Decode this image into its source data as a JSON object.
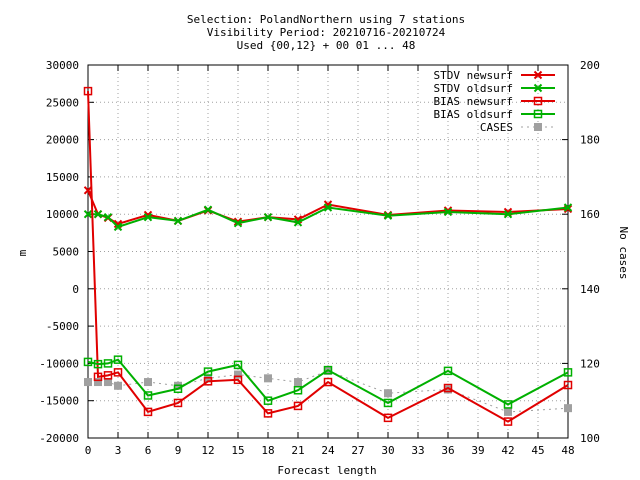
{
  "chart_data": {
    "type": "line",
    "title_lines": [
      "Selection: PolandNorthern using     7 stations",
      "Visibility   Period: 20210716-20210724",
      "Used {00,12} + 00 01 ... 48"
    ],
    "xlabel": "Forecast length",
    "ylabel": "m",
    "y2label": "No cases",
    "xlim": [
      0,
      48
    ],
    "ylim": [
      -20000,
      30000
    ],
    "y2lim": [
      100,
      200
    ],
    "xticks": [
      0,
      3,
      6,
      9,
      12,
      15,
      18,
      21,
      24,
      27,
      30,
      33,
      36,
      39,
      42,
      45,
      48
    ],
    "yticks": [
      -20000,
      -15000,
      -10000,
      -5000,
      0,
      5000,
      10000,
      15000,
      20000,
      25000,
      30000
    ],
    "y2ticks": [
      100,
      120,
      140,
      160,
      180,
      200
    ],
    "grid": true,
    "legend_position": "top-right",
    "series": [
      {
        "name": "STDV newsurf",
        "color": "#e00000",
        "marker": "x",
        "axis": "y",
        "points": [
          [
            0,
            13200
          ],
          [
            1,
            10000
          ],
          [
            2,
            9500
          ],
          [
            3,
            8700
          ],
          [
            6,
            9900
          ],
          [
            9,
            9100
          ],
          [
            12,
            10500
          ],
          [
            15,
            9000
          ],
          [
            18,
            9600
          ],
          [
            21,
            9300
          ],
          [
            24,
            11300
          ],
          [
            30,
            9900
          ],
          [
            36,
            10500
          ],
          [
            42,
            10300
          ],
          [
            48,
            10700
          ]
        ]
      },
      {
        "name": "STDV oldsurf",
        "color": "#00b000",
        "marker": "x",
        "axis": "y",
        "points": [
          [
            0,
            10000
          ],
          [
            1,
            10000
          ],
          [
            2,
            9600
          ],
          [
            3,
            8300
          ],
          [
            6,
            9600
          ],
          [
            9,
            9100
          ],
          [
            12,
            10600
          ],
          [
            15,
            8800
          ],
          [
            18,
            9600
          ],
          [
            21,
            8900
          ],
          [
            24,
            10900
          ],
          [
            30,
            9800
          ],
          [
            36,
            10300
          ],
          [
            42,
            10000
          ],
          [
            48,
            10900
          ]
        ]
      },
      {
        "name": "BIAS newsurf",
        "color": "#e00000",
        "marker": "square",
        "axis": "y",
        "points": [
          [
            0,
            26500
          ],
          [
            1,
            -11800
          ],
          [
            2,
            -11600
          ],
          [
            3,
            -11200
          ],
          [
            6,
            -16500
          ],
          [
            9,
            -15300
          ],
          [
            12,
            -12400
          ],
          [
            15,
            -12200
          ],
          [
            18,
            -16700
          ],
          [
            21,
            -15700
          ],
          [
            24,
            -12500
          ],
          [
            30,
            -17300
          ],
          [
            36,
            -13300
          ],
          [
            42,
            -17800
          ],
          [
            48,
            -12900
          ]
        ]
      },
      {
        "name": "BIAS oldsurf",
        "color": "#00b000",
        "marker": "square",
        "axis": "y",
        "points": [
          [
            0,
            -9800
          ],
          [
            1,
            -10100
          ],
          [
            2,
            -10000
          ],
          [
            3,
            -9500
          ],
          [
            6,
            -14300
          ],
          [
            9,
            -13400
          ],
          [
            12,
            -11100
          ],
          [
            15,
            -10200
          ],
          [
            18,
            -15000
          ],
          [
            21,
            -13600
          ],
          [
            24,
            -10900
          ],
          [
            30,
            -15300
          ],
          [
            36,
            -11000
          ],
          [
            42,
            -15500
          ],
          [
            48,
            -11200
          ]
        ]
      },
      {
        "name": "CASES",
        "color": "#a0a0a0",
        "marker": "filled-square",
        "axis": "y2",
        "dashed": true,
        "points": [
          [
            0,
            115
          ],
          [
            1,
            115
          ],
          [
            2,
            115
          ],
          [
            3,
            114
          ],
          [
            6,
            115
          ],
          [
            9,
            114
          ],
          [
            12,
            116
          ],
          [
            15,
            117
          ],
          [
            18,
            116
          ],
          [
            21,
            115
          ],
          [
            24,
            118
          ],
          [
            30,
            112
          ],
          [
            36,
            113
          ],
          [
            42,
            107
          ],
          [
            48,
            108
          ]
        ]
      }
    ]
  }
}
